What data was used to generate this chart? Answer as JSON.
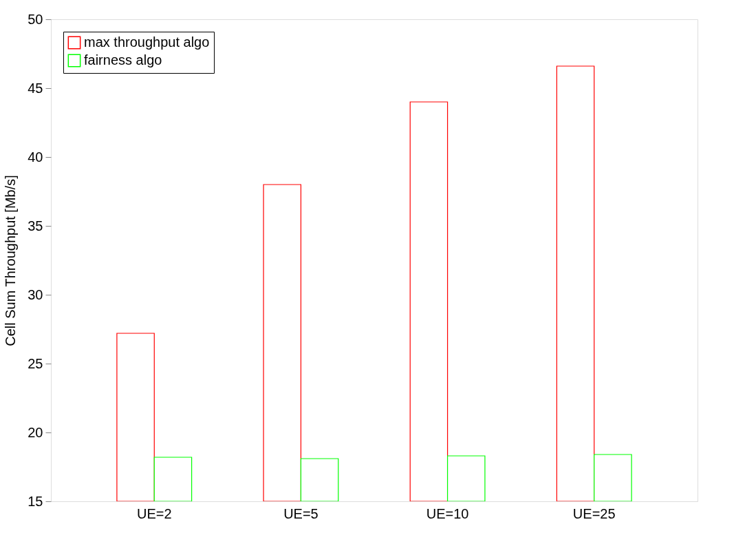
{
  "chart_data": {
    "type": "bar",
    "ylabel": "Cell Sum Throughput [Mb/s]",
    "categories": [
      "UE=2",
      "UE=5",
      "UE=10",
      "UE=25"
    ],
    "series": [
      {
        "name": "max throughput algo",
        "color": "#ff0000",
        "values": [
          27.2,
          38.0,
          44.0,
          46.6
        ]
      },
      {
        "name": "fairness algo",
        "color": "#00ff00",
        "values": [
          18.2,
          18.1,
          18.3,
          18.4
        ]
      }
    ],
    "ylim": [
      15,
      50
    ],
    "yticks": [
      15,
      20,
      25,
      30,
      35,
      40,
      45,
      50
    ],
    "grid": false,
    "legend": "top left"
  }
}
